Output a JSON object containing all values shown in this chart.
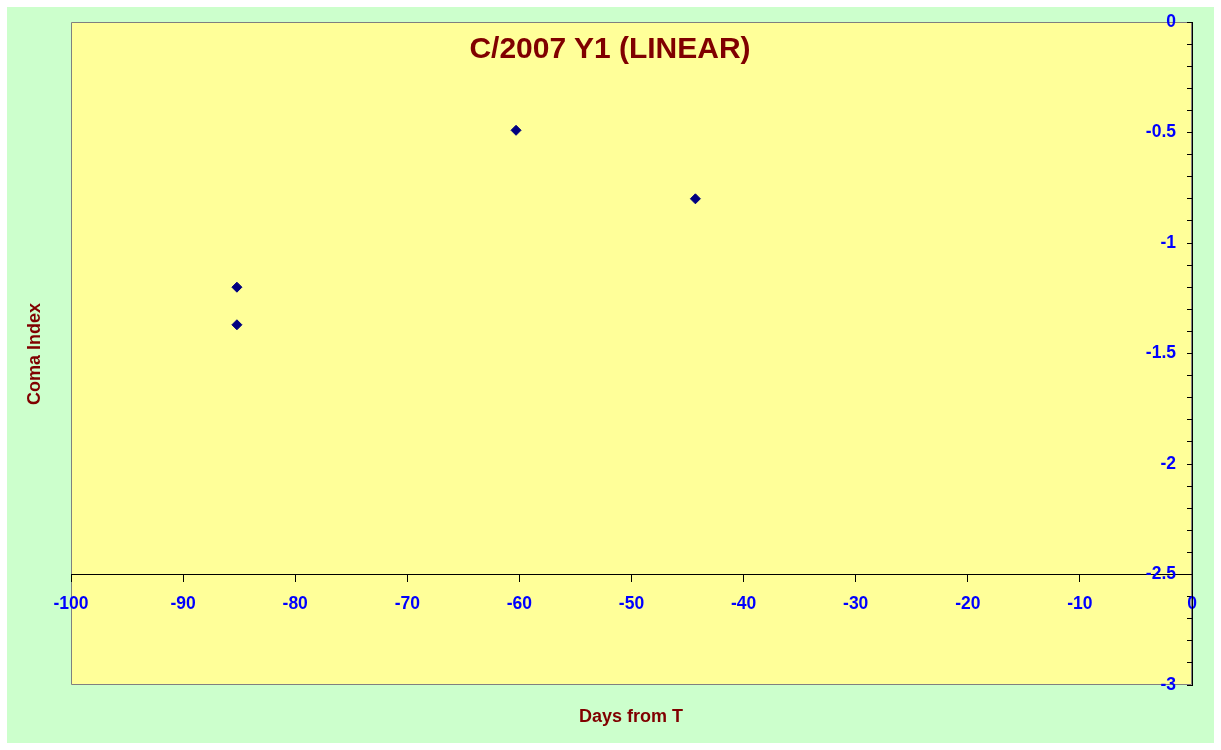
{
  "chart_data": {
    "type": "scatter",
    "title": "C/2007 Y1 (LINEAR)",
    "xlabel": "Days from T",
    "ylabel": "Coma Index",
    "x": [
      -85.2,
      -85.2,
      -60.3,
      -44.3
    ],
    "series": [
      {
        "color": "#000080",
        "values": [
          -1.2,
          -1.37,
          -0.49,
          -0.8
        ]
      }
    ],
    "marker": "diamond",
    "xlim": [
      -100,
      0
    ],
    "xticks": [
      -100,
      -90,
      -80,
      -70,
      -60,
      -50,
      -40,
      -30,
      -20,
      -10,
      0
    ],
    "ylim": [
      -3,
      0
    ],
    "yticks": [
      -3,
      {
        "value": -2.9,
        "label": null
      },
      {
        "value": -2.8,
        "label": null
      },
      {
        "value": -2.7,
        "label": null
      },
      {
        "value": -2.6,
        "label": null
      },
      -2.5,
      {
        "value": -2.4,
        "label": null
      },
      {
        "value": -2.3,
        "label": null
      },
      {
        "value": -2.2,
        "label": null
      },
      {
        "value": -2.1,
        "label": null
      },
      -2,
      {
        "value": -1.9,
        "label": null
      },
      {
        "value": -1.8,
        "label": null
      },
      {
        "value": -1.7,
        "label": null
      },
      {
        "value": -1.6,
        "label": null
      },
      -1.5,
      {
        "value": -1.4,
        "label": null
      },
      {
        "value": -1.3,
        "label": null
      },
      {
        "value": -1.2,
        "label": null
      },
      {
        "value": -1.1,
        "label": null
      },
      -1,
      {
        "value": -0.9,
        "label": null
      },
      {
        "value": -0.8,
        "label": null
      },
      {
        "value": -0.7,
        "label": null
      },
      {
        "value": -0.6,
        "label": null
      },
      -0.5,
      {
        "value": -0.4,
        "label": null
      },
      {
        "value": -0.3,
        "label": null
      },
      {
        "value": -0.2,
        "label": null
      },
      {
        "value": -0.1,
        "label": null
      },
      0
    ]
  }
}
